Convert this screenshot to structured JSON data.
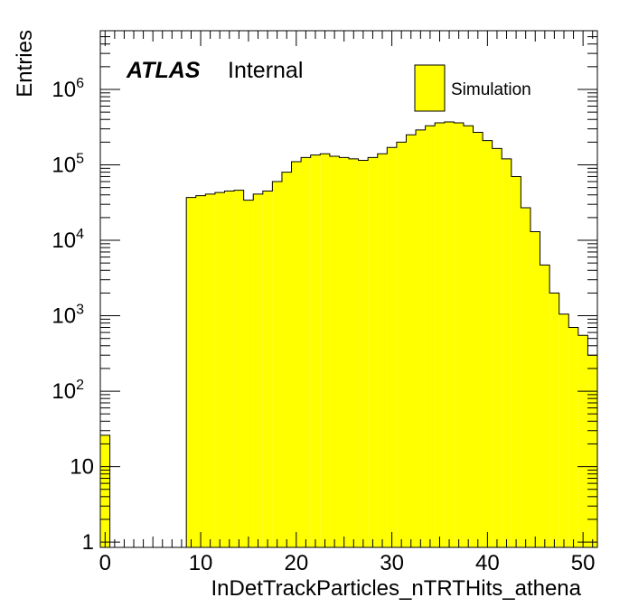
{
  "chart_data": {
    "type": "bar",
    "subtype": "histogram",
    "bin_width": 1,
    "xlabel": "InDetTrackParticles_nTRTHits_athena",
    "ylabel": "Entries",
    "xlim": [
      -0.5,
      51.5
    ],
    "ylim": [
      0.85,
      6000000
    ],
    "yscale": "log",
    "grid": false,
    "fill_color": "#ffff00",
    "line_color": "#000000",
    "x_ticks": [
      0,
      10,
      20,
      30,
      40,
      50
    ],
    "x_tick_labels": [
      "0",
      "10",
      "20",
      "30",
      "40",
      "50"
    ],
    "y_ticks": [
      1,
      10,
      100,
      1000,
      10000,
      100000,
      1000000
    ],
    "y_tick_labels": [
      {
        "base": "1",
        "exp": ""
      },
      {
        "base": "10",
        "exp": ""
      },
      {
        "base": "10",
        "exp": "2"
      },
      {
        "base": "10",
        "exp": "3"
      },
      {
        "base": "10",
        "exp": "4"
      },
      {
        "base": "10",
        "exp": "5"
      },
      {
        "base": "10",
        "exp": "6"
      }
    ],
    "x": [
      0,
      1,
      2,
      3,
      4,
      5,
      6,
      7,
      8,
      9,
      10,
      11,
      12,
      13,
      14,
      15,
      16,
      17,
      18,
      19,
      20,
      21,
      22,
      23,
      24,
      25,
      26,
      27,
      28,
      29,
      30,
      31,
      32,
      33,
      34,
      35,
      36,
      37,
      38,
      39,
      40,
      41,
      42,
      43,
      44,
      45,
      46,
      47,
      48,
      49,
      50,
      51
    ],
    "values": [
      26,
      0,
      0,
      0,
      0,
      0,
      0,
      0,
      0,
      37000,
      39000,
      41000,
      43000,
      45000,
      46000,
      34000,
      41000,
      45000,
      60000,
      80000,
      110000,
      125000,
      135000,
      140000,
      130000,
      125000,
      120000,
      115000,
      125000,
      140000,
      170000,
      200000,
      250000,
      290000,
      330000,
      360000,
      370000,
      360000,
      330000,
      270000,
      210000,
      165000,
      120000,
      70000,
      27000,
      13000,
      4700,
      2000,
      1050,
      700,
      550,
      300
    ],
    "legend": [
      {
        "label": "Simulation",
        "color": "#ffff00"
      }
    ],
    "legend_position": "top-right",
    "annotations": [
      {
        "bold_italic": "ATLAS",
        "text": "Internal"
      }
    ]
  }
}
